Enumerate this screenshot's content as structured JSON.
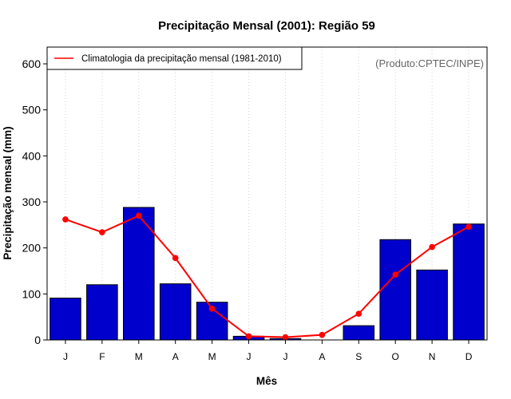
{
  "chart_data": {
    "type": "bar",
    "title": "Precipitação Mensal (2001): Região 59",
    "xlabel": "Mês",
    "ylabel": "Precipitação mensal (mm)",
    "source_note": "(Produto:CPTEC/INPE)",
    "categories": [
      "J",
      "F",
      "M",
      "A",
      "M",
      "J",
      "J",
      "A",
      "S",
      "O",
      "N",
      "D"
    ],
    "ylim": [
      0,
      620
    ],
    "yticks": [
      0,
      100,
      200,
      300,
      400,
      500,
      600
    ],
    "grid": "vertical-dotted",
    "series": [
      {
        "name": "Precipitação mensal 2001",
        "kind": "bar",
        "color": "#0000cd",
        "values": [
          91,
          120,
          288,
          122,
          82,
          8,
          3,
          0,
          31,
          218,
          152,
          252
        ]
      },
      {
        "name": "Climatologia da precipitação mensal (1981-2010)",
        "kind": "line",
        "color": "#ff0000",
        "values": [
          262,
          234,
          270,
          178,
          68,
          8,
          6,
          11,
          57,
          142,
          202,
          246
        ]
      }
    ],
    "legend": {
      "position": "top-left",
      "entries": [
        "Climatologia da precipitação mensal (1981-2010)"
      ]
    }
  }
}
